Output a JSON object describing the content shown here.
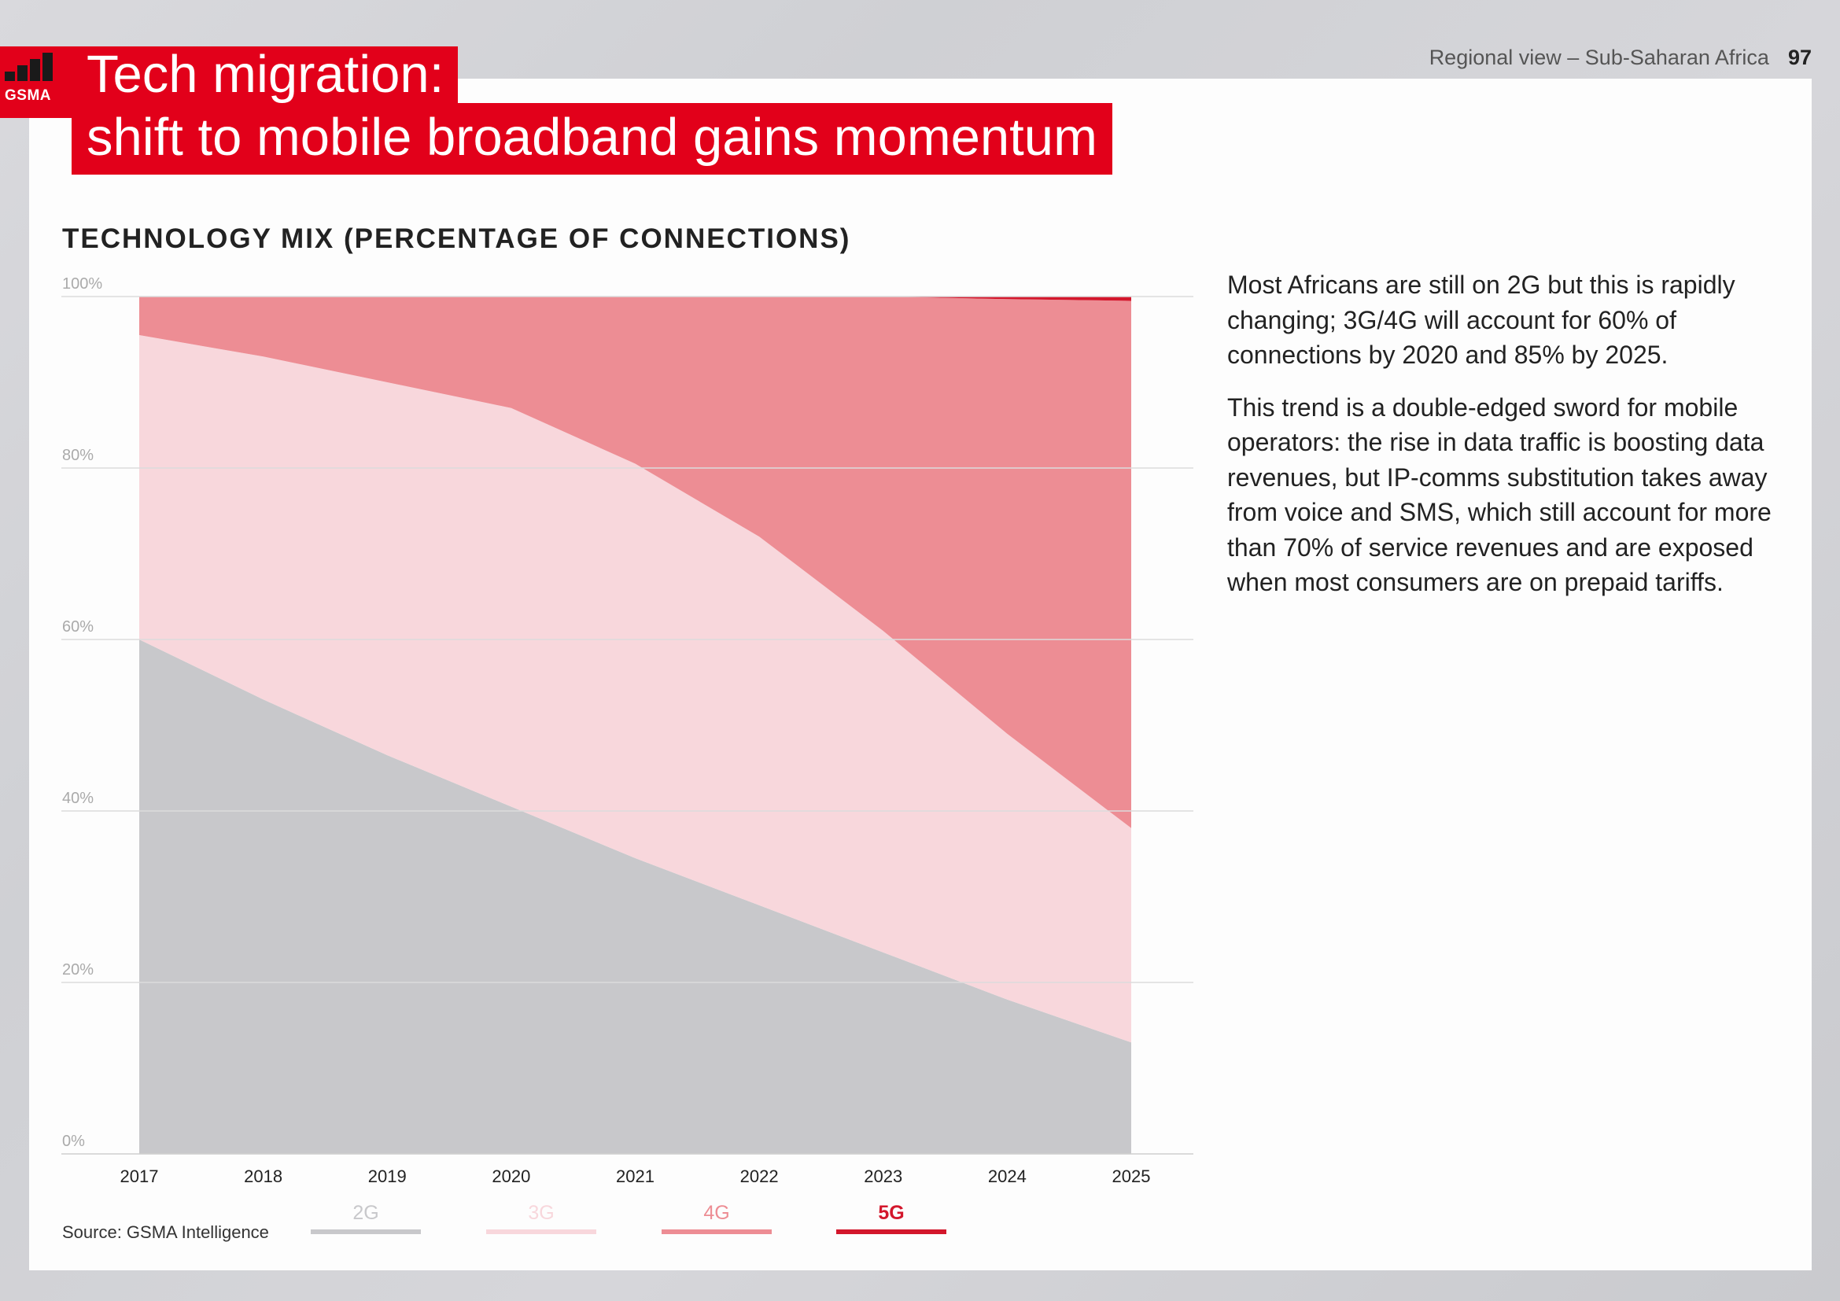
{
  "header": {
    "logo_text": "GSMA",
    "title_line1": "Tech migration:",
    "title_line2": "shift to mobile broadband gains momentum",
    "section": "Regional view – Sub-Saharan Africa",
    "page_number": "97"
  },
  "chart_title": "TECHNOLOGY MIX (PERCENTAGE OF CONNECTIONS)",
  "body": {
    "paragraph1": "Most Africans are still on 2G but this is rapidly changing; 3G/4G will account for 60% of connections by 2020 and 85% by 2025.",
    "paragraph2": "This trend is a double-edged sword for mobile operators: the rise in data traffic is boosting data revenues, but IP-comms substitution takes away from voice and SMS, which still account for more than 70% of service revenues and are exposed when most consumers are on prepaid tariffs."
  },
  "source": "Source: GSMA Intelligence",
  "colors": {
    "brand_red": "#e2001a",
    "2G": "#c8c8cb",
    "3G": "#f8d7dc",
    "4G": "#ed8d94",
    "5G": "#d3172c"
  },
  "chart_data": {
    "type": "area",
    "stacked": true,
    "x": [
      "2017",
      "2018",
      "2019",
      "2020",
      "2021",
      "2022",
      "2023",
      "2024",
      "2025"
    ],
    "ylim": [
      0,
      100
    ],
    "yticks": [
      "0%",
      "20%",
      "40%",
      "60%",
      "80%",
      "100%"
    ],
    "grid": true,
    "legend_position": "bottom",
    "series": [
      {
        "name": "2G",
        "values": [
          60,
          53,
          46.5,
          40.5,
          34.5,
          29,
          23.5,
          18,
          13
        ]
      },
      {
        "name": "3G",
        "values": [
          35.5,
          40,
          43.5,
          46.5,
          46,
          43,
          37.5,
          31,
          25
        ]
      },
      {
        "name": "4G",
        "values": [
          4.5,
          7,
          10,
          13,
          19.5,
          28,
          39,
          50.7,
          61.5
        ]
      },
      {
        "name": "5G",
        "values": [
          0,
          0,
          0,
          0,
          0,
          0,
          0,
          0.3,
          0.5
        ]
      }
    ]
  }
}
